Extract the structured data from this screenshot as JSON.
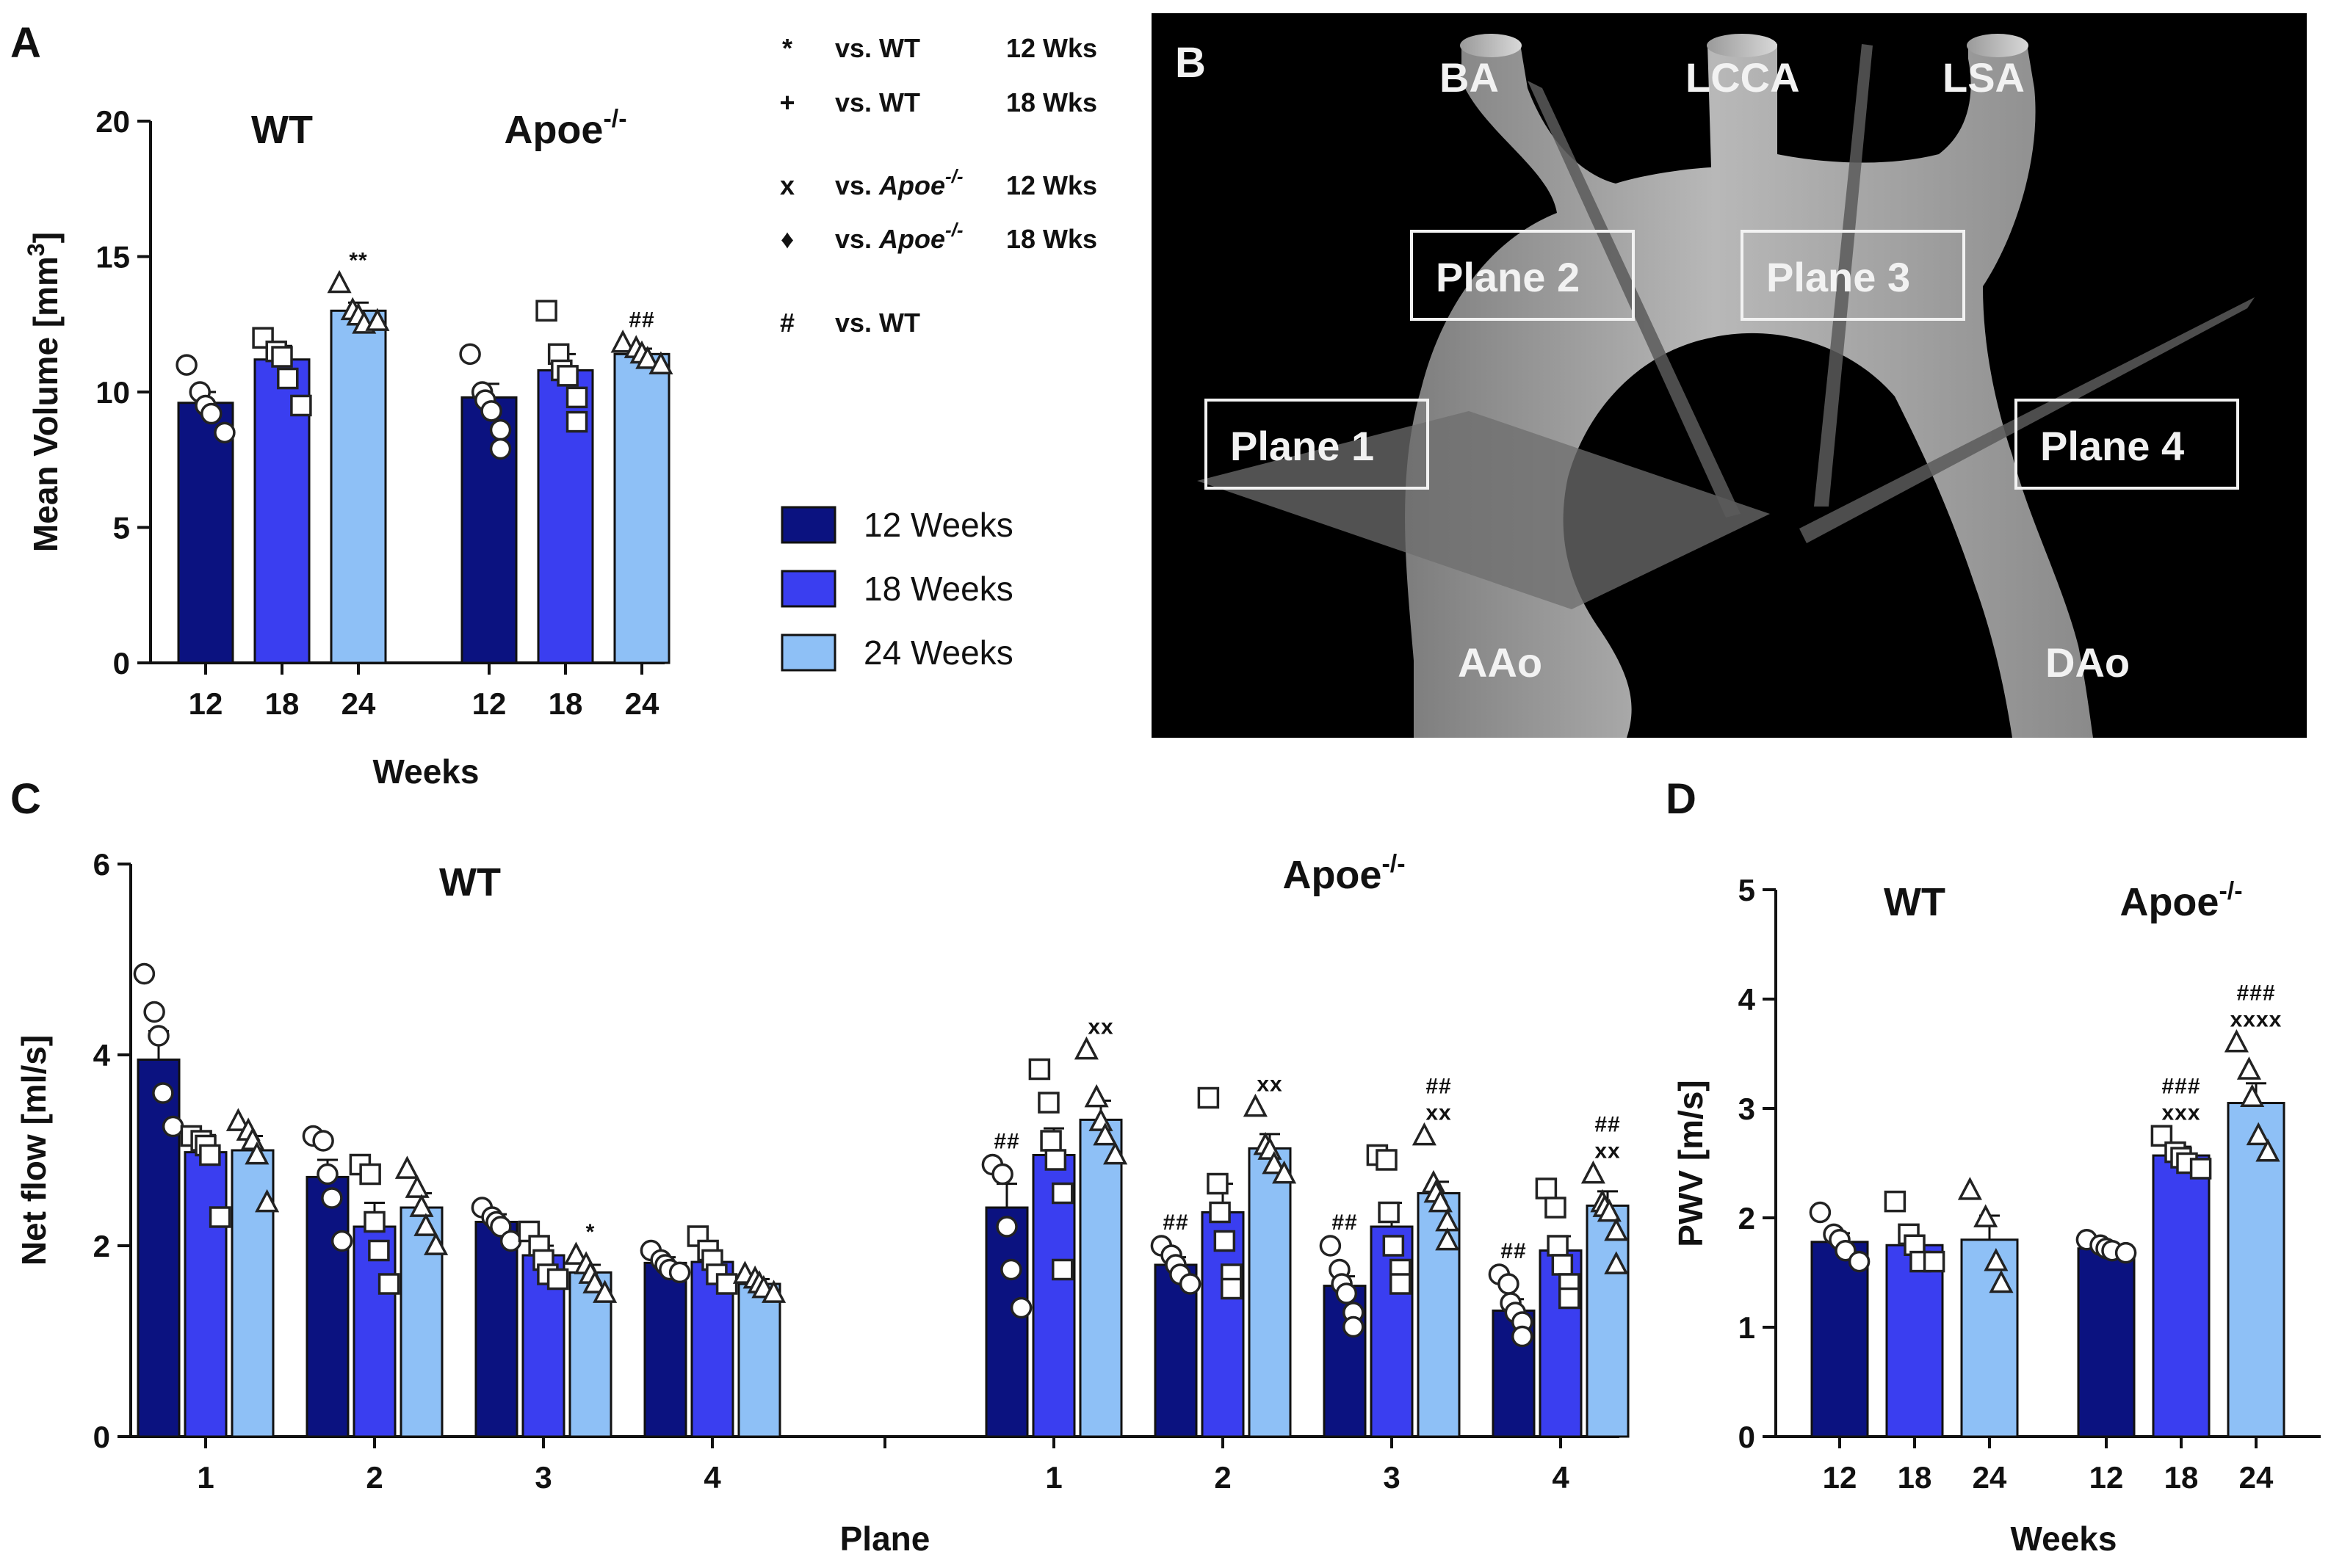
{
  "colors": {
    "w12": "#0b1280",
    "w18": "#3a3ef0",
    "w24": "#8ec0f6"
  },
  "panels": {
    "A": "A",
    "B": "B",
    "C": "C",
    "D": "D"
  },
  "key": [
    {
      "symbol": "*",
      "vs": "vs. WT",
      "when": "12 Wks",
      "italic": ""
    },
    {
      "symbol": "+",
      "vs": "vs. WT",
      "when": "18 Wks",
      "italic": ""
    },
    {
      "symbol": "x",
      "vs": "vs. ",
      "italic": "Apoe",
      "sup": "-/-",
      "when": "12 Wks"
    },
    {
      "symbol": "♦",
      "vs": "vs. ",
      "italic": "Apoe",
      "sup": "-/-",
      "when": "18 Wks"
    },
    {
      "symbol": "#",
      "vs": "vs. WT",
      "when": "",
      "italic": ""
    }
  ],
  "legend": [
    "12 Weeks",
    "18 Weeks",
    "24 Weeks"
  ],
  "panel_b": {
    "vessel_labels": [
      "BA",
      "LCCA",
      "LSA",
      "AAo",
      "DAo"
    ],
    "planes": [
      "Plane 1",
      "Plane 2",
      "Plane 3",
      "Plane 4"
    ]
  },
  "chart_data": [
    {
      "id": "A",
      "type": "bar",
      "ylabel": "Mean Volume [mm",
      "ylabel_sup": "3",
      "ylabel_end": "]",
      "xlabel": "Weeks",
      "ylim": [
        0,
        20
      ],
      "yticks": [
        0,
        5,
        10,
        15,
        20
      ],
      "groups": [
        {
          "name": "WT",
          "sup": "",
          "categories": [
            "12",
            "18",
            "24"
          ],
          "values": [
            9.6,
            11.2,
            13.0
          ],
          "errors": [
            0.4,
            0.5,
            0.3
          ],
          "sig": [
            "",
            "",
            "**"
          ],
          "points": [
            [
              11.0,
              10.0,
              9.5,
              9.2,
              8.5
            ],
            [
              12.0,
              11.5,
              11.3,
              10.5,
              9.5
            ],
            [
              14.0,
              13.0,
              12.8,
              12.5,
              12.6
            ]
          ]
        },
        {
          "name": "Apoe",
          "sup": "-/-",
          "categories": [
            "12",
            "18",
            "24"
          ],
          "values": [
            9.8,
            10.8,
            11.4
          ],
          "errors": [
            0.5,
            0.6,
            0.2
          ],
          "sig": [
            "",
            "",
            "##"
          ],
          "points": [
            [
              11.4,
              10.0,
              9.7,
              9.3,
              8.6,
              7.9
            ],
            [
              13.0,
              11.4,
              10.8,
              10.6,
              9.8,
              8.9
            ],
            [
              11.8,
              11.6,
              11.4,
              11.2,
              11.0
            ]
          ]
        }
      ]
    },
    {
      "id": "C",
      "type": "bar",
      "ylabel": "Net flow [ml/s]",
      "xlabel": "Plane",
      "ylim": [
        0,
        6
      ],
      "yticks": [
        0,
        2,
        4,
        6
      ],
      "group_titles": [
        {
          "name": "WT",
          "sup": ""
        },
        {
          "name": "Apoe",
          "sup": "-/-"
        }
      ],
      "categories": [
        "1",
        "2",
        "3",
        "4"
      ],
      "series": [
        {
          "name": "WT 12 Weeks",
          "values": [
            3.95,
            2.72,
            2.25,
            1.82
          ],
          "errors": [
            0.3,
            0.18,
            0.08,
            0.06
          ],
          "sig": [
            "",
            "",
            "",
            ""
          ],
          "points": [
            [
              4.85,
              4.45,
              4.2,
              3.6,
              3.25
            ],
            [
              3.15,
              3.1,
              2.75,
              2.5,
              2.05
            ],
            [
              2.4,
              2.3,
              2.25,
              2.2,
              2.05
            ],
            [
              1.95,
              1.85,
              1.8,
              1.75,
              1.72
            ]
          ]
        },
        {
          "name": "WT 18 Weeks",
          "values": [
            2.98,
            2.2,
            1.9,
            1.83
          ],
          "errors": [
            0.18,
            0.25,
            0.1,
            0.1
          ],
          "sig": [
            "",
            "",
            "",
            ""
          ],
          "points": [
            [
              3.15,
              3.1,
              3.05,
              2.95,
              2.3
            ],
            [
              2.85,
              2.75,
              2.25,
              1.95,
              1.6
            ],
            [
              2.15,
              2.0,
              1.85,
              1.7,
              1.65
            ],
            [
              2.1,
              1.95,
              1.85,
              1.7,
              1.6
            ]
          ]
        },
        {
          "name": "WT 24 Weeks",
          "values": [
            3.0,
            2.4,
            1.72,
            1.6
          ],
          "errors": [
            0.15,
            0.15,
            0.08,
            0.05
          ],
          "sig": [
            "",
            "",
            "*",
            ""
          ],
          "points": [
            [
              3.3,
              3.2,
              3.1,
              2.95,
              2.45
            ],
            [
              2.8,
              2.6,
              2.4,
              2.2,
              2.0
            ],
            [
              1.9,
              1.8,
              1.7,
              1.6,
              1.5
            ],
            [
              1.7,
              1.65,
              1.6,
              1.55,
              1.5
            ]
          ]
        },
        {
          "name": "Apoe 12 Weeks",
          "values": [
            2.4,
            1.8,
            1.58,
            1.32
          ],
          "errors": [
            0.25,
            0.08,
            0.1,
            0.12
          ],
          "sig": [
            "##",
            "##",
            "##",
            "##"
          ],
          "points": [
            [
              2.85,
              2.75,
              2.2,
              1.75,
              1.35
            ],
            [
              2.0,
              1.9,
              1.8,
              1.7,
              1.6
            ],
            [
              2.0,
              1.75,
              1.6,
              1.5,
              1.3,
              1.15
            ],
            [
              1.7,
              1.6,
              1.4,
              1.3,
              1.2,
              1.05
            ]
          ]
        },
        {
          "name": "Apoe 18 Weeks",
          "values": [
            2.95,
            2.35,
            2.2,
            1.95
          ],
          "errors": [
            0.28,
            0.3,
            0.25,
            0.15
          ],
          "sig": [
            "",
            "",
            "",
            ""
          ],
          "points": [
            [
              3.85,
              3.5,
              3.1,
              2.9,
              2.55,
              1.75
            ],
            [
              3.55,
              2.65,
              2.35,
              2.05,
              1.7,
              1.55
            ],
            [
              2.95,
              2.9,
              2.35,
              2.0,
              1.75,
              1.6
            ],
            [
              2.6,
              2.4,
              2.0,
              1.8,
              1.6,
              1.45
            ]
          ]
        },
        {
          "name": "Apoe 24 Weeks",
          "values": [
            3.32,
            3.02,
            2.55,
            2.42
          ],
          "errors": [
            0.2,
            0.15,
            0.12,
            0.15
          ],
          "sig": [
            "xx",
            "xx",
            "##\nxx",
            "##\nxx"
          ],
          "points": [
            [
              4.05,
              3.55,
              3.3,
              3.15,
              2.95
            ],
            [
              3.45,
              3.05,
              3.0,
              2.85,
              2.75
            ],
            [
              3.15,
              2.65,
              2.55,
              2.45,
              2.25,
              2.05
            ],
            [
              2.75,
              2.45,
              2.4,
              2.35,
              2.15,
              1.8
            ]
          ]
        }
      ]
    },
    {
      "id": "D",
      "type": "bar",
      "ylabel": "PWV [m/s]",
      "xlabel": "Weeks",
      "ylim": [
        0,
        5
      ],
      "yticks": [
        0,
        1,
        2,
        3,
        4,
        5
      ],
      "groups": [
        {
          "name": "WT",
          "sup": "",
          "categories": [
            "12",
            "18",
            "24"
          ],
          "values": [
            1.78,
            1.75,
            1.8
          ],
          "errors": [
            0.08,
            0.08,
            0.22
          ],
          "sig": [
            "",
            "",
            ""
          ],
          "points": [
            [
              2.05,
              1.85,
              1.8,
              1.7,
              1.6
            ],
            [
              2.15,
              1.85,
              1.75,
              1.6,
              1.6
            ],
            [
              2.25,
              2.0,
              1.6,
              1.4
            ]
          ]
        },
        {
          "name": "Apoe",
          "sup": "-/-",
          "categories": [
            "12",
            "18",
            "24"
          ],
          "values": [
            1.72,
            2.57,
            3.05
          ],
          "errors": [
            0.04,
            0.08,
            0.18
          ],
          "sig": [
            "",
            "###\nxxx",
            "###\nxxxx"
          ],
          "points": [
            [
              1.8,
              1.75,
              1.72,
              1.7,
              1.68
            ],
            [
              2.75,
              2.6,
              2.55,
              2.5,
              2.45
            ],
            [
              3.6,
              3.35,
              3.1,
              2.75,
              2.6,
              2.6
            ]
          ]
        }
      ]
    }
  ]
}
